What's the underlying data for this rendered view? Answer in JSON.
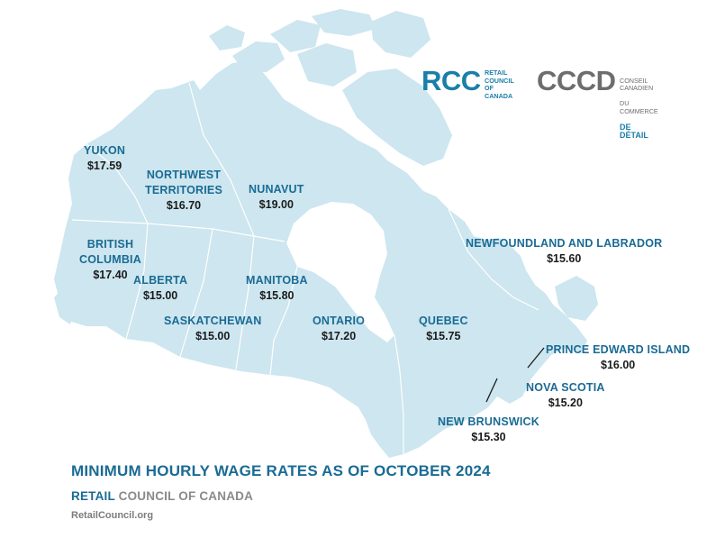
{
  "logos": {
    "rcc_mark": "RCC",
    "rcc_text": "RETAIL\nCOUNCIL\nOF CANADA",
    "cccd_mark": "CCCD",
    "cccd_text_line1": "CONSEIL CANADIEN",
    "cccd_text_line2": "DU COMMERCE",
    "cccd_text_line3": "DE DÉTAIL"
  },
  "regions": {
    "yukon": {
      "name": "YUKON",
      "rate": "$17.59"
    },
    "nwt": {
      "name": "NORTHWEST\nTERRITORIES",
      "rate": "$16.70"
    },
    "nunavut": {
      "name": "NUNAVUT",
      "rate": "$19.00"
    },
    "bc": {
      "name": "BRITISH\nCOLUMBIA",
      "rate": "$17.40"
    },
    "alberta": {
      "name": "ALBERTA",
      "rate": "$15.00"
    },
    "manitoba": {
      "name": "MANITOBA",
      "rate": "$15.80"
    },
    "saskatchewan": {
      "name": "SASKATCHEWAN",
      "rate": "$15.00"
    },
    "ontario": {
      "name": "ONTARIO",
      "rate": "$17.20"
    },
    "quebec": {
      "name": "QUEBEC",
      "rate": "$15.75"
    },
    "newfoundland": {
      "name": "NEWFOUNDLAND AND LABRADOR",
      "rate": "$15.60"
    },
    "pei": {
      "name": "PRINCE EDWARD ISLAND",
      "rate": "$16.00"
    },
    "nova_scotia": {
      "name": "NOVA SCOTIA",
      "rate": "$15.20"
    },
    "new_brunswick": {
      "name": "NEW BRUNSWICK",
      "rate": "$15.30"
    }
  },
  "footer": {
    "title": "MINIMUM HOURLY WAGE RATES AS OF OCTOBER 2024",
    "org_accent": "RETAIL",
    "org_rest": " COUNCIL OF CANADA",
    "website": "RetailCouncil.org"
  },
  "colors": {
    "land": "#cde6ef",
    "border": "#ffffff",
    "accent": "#1a6b94",
    "rate_text": "#1b1b1b",
    "logo_teal": "#1a7fa8",
    "logo_gray": "#6d6d6d"
  }
}
